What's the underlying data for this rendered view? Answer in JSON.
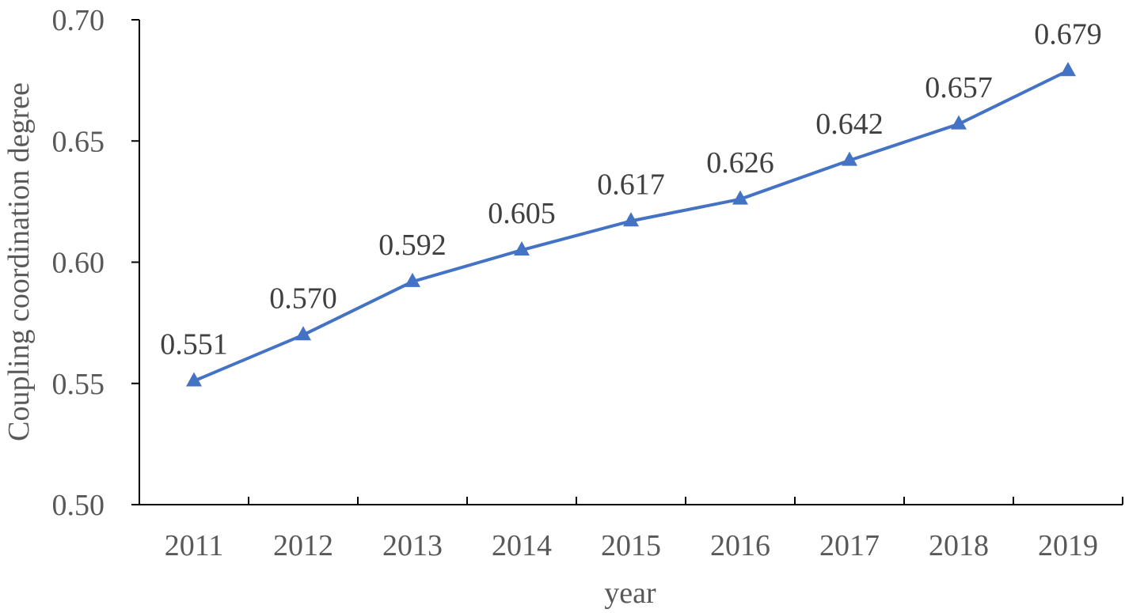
{
  "chart_data": {
    "type": "line",
    "categories": [
      "2011",
      "2012",
      "2013",
      "2014",
      "2015",
      "2016",
      "2017",
      "2018",
      "2019"
    ],
    "series": [
      {
        "values": [
          0.551,
          0.57,
          0.592,
          0.605,
          0.617,
          0.626,
          0.642,
          0.657,
          0.679
        ],
        "labels": [
          "0.551",
          "0.570",
          "0.592",
          "0.605",
          "0.617",
          "0.626",
          "0.642",
          "0.657",
          "0.679"
        ],
        "color": "#4472C4",
        "marker": "triangle"
      }
    ],
    "title": "",
    "xlabel": "year",
    "ylabel": "Coupling coordination degree",
    "ylim": [
      0.5,
      0.7
    ],
    "yticks": [
      0.5,
      0.55,
      0.6,
      0.65,
      0.7
    ],
    "ytick_labels": [
      "0.50",
      "0.55",
      "0.60",
      "0.65",
      "0.70"
    ],
    "grid": false,
    "legend": "none",
    "axis_color": "#000000"
  }
}
